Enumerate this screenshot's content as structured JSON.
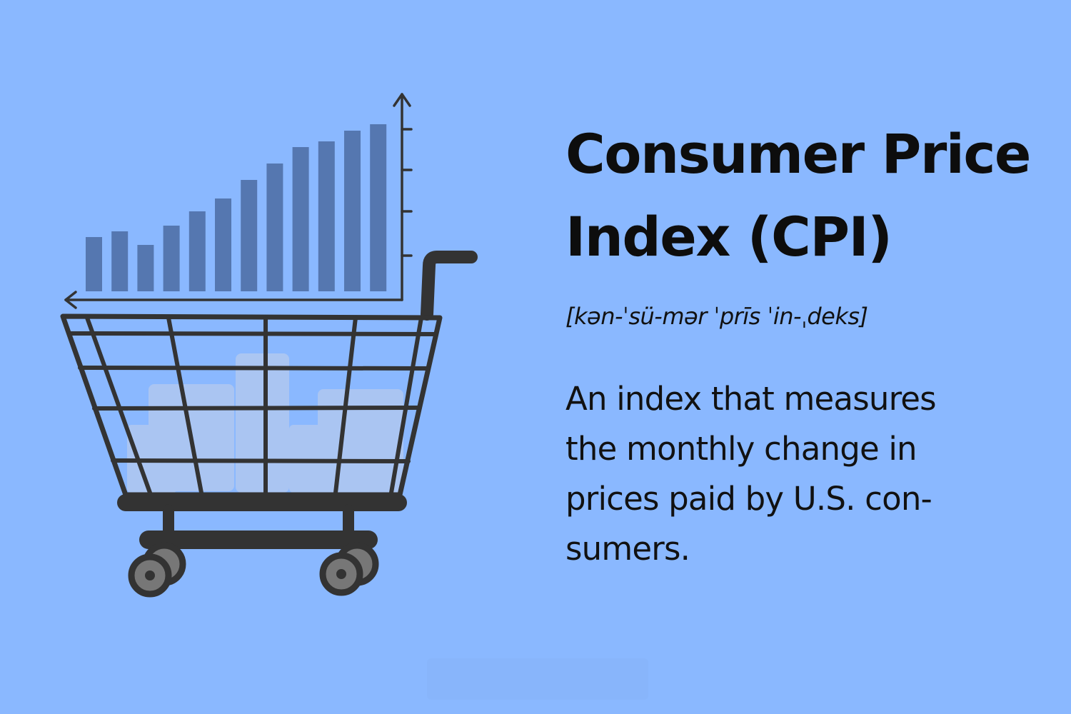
{
  "colors": {
    "background": "#8ab8ff",
    "bar": "#5577b0",
    "basket_fill": "#b0c8f0",
    "frame": "#333333",
    "wheel": "#777777"
  },
  "chart_data": {
    "type": "bar",
    "values": [
      7.6,
      8.4,
      6.5,
      9.2,
      11.2,
      13.0,
      15.6,
      17.9,
      20.2,
      21.0,
      22.5,
      23.4
    ]
  },
  "title": {
    "line1": "Consumer Price",
    "line2": "Index (CPI)"
  },
  "pronunciation": "[kən-ˈsü-mər ˈprīs ˈin-ˌdeks]",
  "definition": {
    "line1": "An index that measures",
    "line2": "the monthly change in",
    "line3": "prices paid by U.S. con-",
    "line4": "sumers."
  },
  "icons": {
    "cart": "shopping-cart-icon",
    "arrow_up": "arrow-up-icon",
    "arrow_left": "arrow-left-icon"
  }
}
